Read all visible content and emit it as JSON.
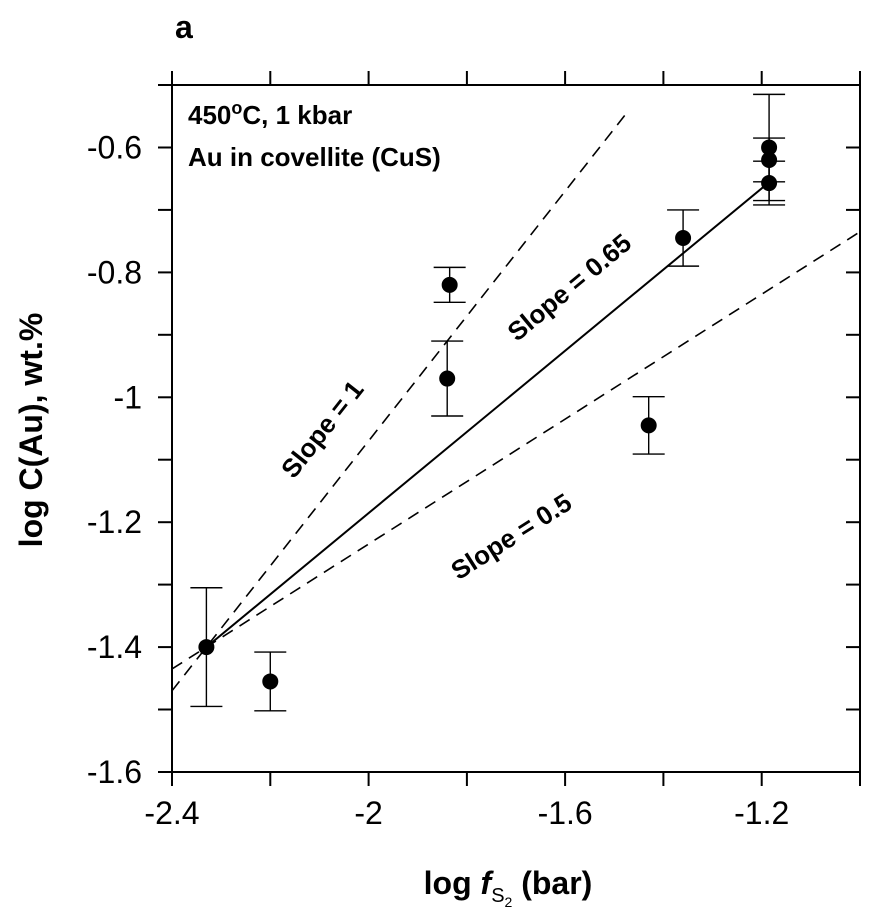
{
  "chart_data": {
    "type": "scatter",
    "panel_label": "a",
    "annotation_lines": [
      "450°C, 1 kbar",
      "Au in covellite (CuS)"
    ],
    "xlabel": "log f S2 (bar)",
    "xlabel_parts": {
      "prefix": "log ",
      "italic": "f",
      "sub": "S",
      "subsub": "2",
      "suffix": " (bar)"
    },
    "ylabel": "log C(Au), wt.%",
    "xlim": [
      -2.4,
      -1.0
    ],
    "ylim": [
      -1.6,
      -0.5
    ],
    "x_ticks": [
      -2.4,
      -2.0,
      -1.6,
      -1.2
    ],
    "x_tick_labels": [
      "-2.4",
      "-2",
      "-1.6",
      "-1.2"
    ],
    "y_ticks": [
      -1.6,
      -1.4,
      -1.2,
      -1.0,
      -0.8,
      -0.6
    ],
    "y_tick_labels": [
      "-1.6",
      "-1.4",
      "-1.2",
      "-1",
      "-0.8",
      "-0.6"
    ],
    "grid": false,
    "points": [
      {
        "x": -2.33,
        "y": -1.4,
        "err": 0.095
      },
      {
        "x": -2.2,
        "y": -1.455,
        "err": 0.047
      },
      {
        "x": -1.84,
        "y": -0.97,
        "err": 0.06
      },
      {
        "x": -1.835,
        "y": -0.82,
        "err": 0.028
      },
      {
        "x": -1.43,
        "y": -1.045,
        "err": 0.046
      },
      {
        "x": -1.36,
        "y": -0.745,
        "err": 0.045
      },
      {
        "x": -1.185,
        "y": -0.6,
        "err": 0.085
      },
      {
        "x": -1.185,
        "y": -0.62,
        "err": 0.035
      },
      {
        "x": -1.185,
        "y": -0.657,
        "err": 0.035
      }
    ],
    "lines": [
      {
        "name": "Slope = 0.65",
        "style": "solid",
        "slope": 0.65,
        "x0": -2.33,
        "y0": -1.4,
        "x_range": [
          -2.33,
          -1.19
        ],
        "label_x": -1.58,
        "label_y": -0.835
      },
      {
        "name": "Slope = 1",
        "style": "dashed",
        "slope": 1.0,
        "x0": -2.33,
        "y0": -1.4,
        "x_range": [
          -2.4,
          -1.47
        ],
        "label_x": -2.08,
        "label_y": -1.06
      },
      {
        "name": "Slope = 0.5",
        "style": "dashed",
        "slope": 0.5,
        "x0": -2.33,
        "y0": -1.4,
        "x_range": [
          -2.4,
          -1.0
        ],
        "label_x": -1.7,
        "label_y": -1.235
      }
    ]
  }
}
